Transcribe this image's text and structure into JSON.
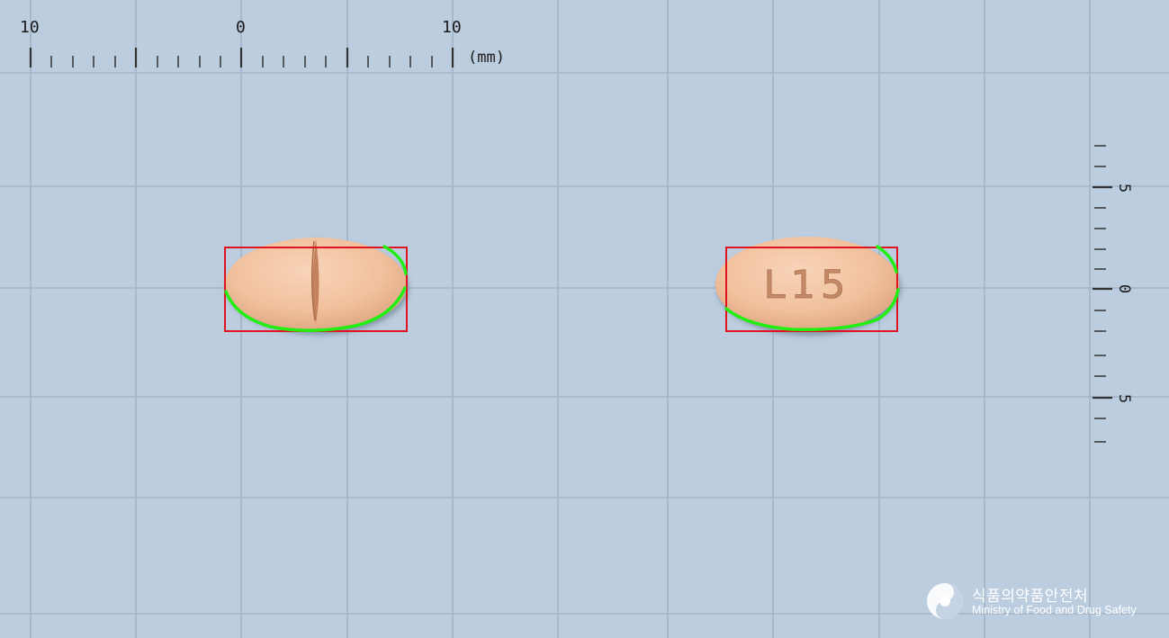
{
  "ruler": {
    "top_labels": [
      "10",
      "0",
      "10"
    ],
    "unit": "(mm)",
    "side_labels": [
      "5",
      "0",
      "5"
    ]
  },
  "pills": {
    "front_imprint": "",
    "back_imprint": "L15",
    "color": "#f2c4a4"
  },
  "overlay": {
    "box_color": "#e0141e",
    "contour_color": "#22ee11"
  },
  "logo": {
    "korean": "식품의약품안전처",
    "english": "Ministry of Food and Drug Safety"
  }
}
